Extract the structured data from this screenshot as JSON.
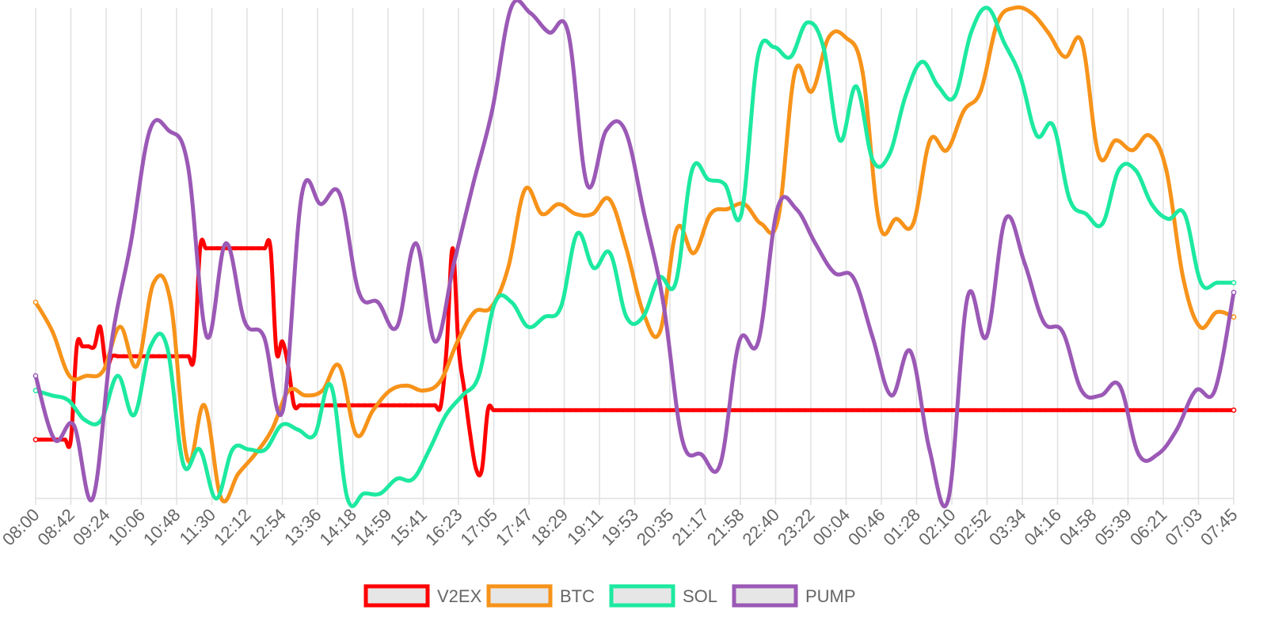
{
  "chart_data": {
    "type": "line",
    "title": "",
    "xlabel": "",
    "ylabel": "",
    "ylim": [
      0,
      100
    ],
    "grid": true,
    "legend_position": "bottom",
    "x_ticks": [
      "08:00",
      "08:42",
      "09:24",
      "10:06",
      "10:48",
      "11:30",
      "12:12",
      "12:54",
      "13:36",
      "14:18",
      "14:59",
      "15:41",
      "16:23",
      "17:05",
      "17:47",
      "18:29",
      "19:11",
      "19:53",
      "20:35",
      "21:17",
      "21:58",
      "22:40",
      "23:22",
      "00:04",
      "00:46",
      "01:28",
      "02:10",
      "02:52",
      "03:34",
      "04:16",
      "04:58",
      "05:39",
      "06:21",
      "07:03",
      "07:45"
    ],
    "series": [
      {
        "name": "V2EX",
        "color": "#ff0000",
        "step": true,
        "values": [
          12,
          12,
          12,
          12,
          12,
          12,
          12,
          31,
          31,
          31,
          31,
          35,
          27,
          29,
          29,
          29,
          29,
          29,
          29,
          29,
          29,
          29,
          29,
          29,
          29,
          29,
          29,
          29,
          51,
          51,
          51,
          51,
          51,
          51,
          51,
          51,
          51,
          51,
          51,
          51,
          51,
          30,
          32,
          27,
          19,
          19,
          19,
          19,
          19,
          19,
          19,
          19,
          19,
          19,
          19,
          19,
          19,
          19,
          19,
          19,
          19,
          19,
          19,
          19,
          19,
          19,
          19,
          19,
          19,
          19,
          31,
          51,
          31,
          22,
          13,
          6,
          6,
          18,
          18,
          18,
          18,
          18,
          18,
          18,
          18,
          18,
          18,
          18,
          18,
          18,
          18,
          18,
          18,
          18,
          18,
          18,
          18,
          18,
          18,
          18,
          18,
          18,
          18,
          18,
          18,
          18,
          18,
          18,
          18,
          18,
          18,
          18,
          18,
          18,
          18,
          18,
          18,
          18,
          18,
          18,
          18,
          18,
          18,
          18,
          18,
          18,
          18,
          18,
          18,
          18,
          18,
          18,
          18,
          18,
          18,
          18,
          18,
          18,
          18,
          18,
          18,
          18,
          18,
          18,
          18,
          18,
          18,
          18,
          18,
          18,
          18,
          18,
          18,
          18,
          18,
          18,
          18,
          18,
          18,
          18,
          18,
          18,
          18,
          18,
          18,
          18,
          18,
          18,
          18,
          18,
          18,
          18,
          18,
          18,
          18,
          18,
          18,
          18,
          18,
          18,
          18,
          18,
          18,
          18,
          18,
          18,
          18,
          18,
          18,
          18,
          18,
          18,
          18,
          18,
          18,
          18,
          18,
          18,
          18,
          18,
          18,
          18,
          18,
          18,
          18
        ]
      },
      {
        "name": "BTC",
        "color": "#f7931a",
        "values": [
          40,
          34,
          25,
          25,
          26,
          35,
          27,
          44,
          40,
          8,
          19,
          0,
          5,
          9,
          14,
          22,
          21,
          22,
          27,
          13,
          18,
          22,
          23,
          22,
          24,
          32,
          38,
          39,
          47,
          63,
          58,
          60,
          58,
          58,
          61,
          51,
          38,
          34,
          55,
          50,
          58,
          59,
          60,
          56,
          57,
          87,
          83,
          94,
          94,
          87,
          56,
          57,
          56,
          73,
          71,
          79,
          83,
          97,
          100,
          99,
          95,
          90,
          93,
          70,
          73,
          71,
          74,
          67,
          45,
          35,
          38,
          37
        ]
      },
      {
        "name": "SOL",
        "color": "#1de9a0",
        "values": [
          22,
          21,
          20,
          16,
          16,
          25,
          17,
          31,
          31,
          7,
          10,
          0,
          10,
          10,
          10,
          15,
          14,
          13,
          23,
          0,
          1,
          1,
          4,
          4,
          10,
          17,
          21,
          25,
          40,
          40,
          35,
          37,
          39,
          54,
          47,
          50,
          37,
          37,
          45,
          44,
          67,
          65,
          64,
          58,
          90,
          92,
          90,
          97,
          92,
          73,
          84,
          69,
          70,
          82,
          89,
          84,
          82,
          95,
          100,
          93,
          86,
          74,
          76,
          61,
          58,
          56,
          67,
          67,
          60,
          57,
          58,
          44,
          44,
          44
        ]
      },
      {
        "name": "PUMP",
        "color": "#9b59b6",
        "values": [
          25,
          12,
          15,
          0,
          32,
          52,
          75,
          75,
          68,
          33,
          52,
          36,
          33,
          18,
          62,
          60,
          62,
          42,
          40,
          35,
          52,
          32,
          48,
          64,
          79,
          100,
          99,
          95,
          95,
          64,
          75,
          75,
          58,
          40,
          12,
          9,
          7,
          32,
          32,
          59,
          59,
          52,
          46,
          45,
          33,
          21,
          30,
          10,
          0,
          41,
          33,
          57,
          48,
          36,
          34,
          22,
          21,
          23,
          9,
          9,
          14,
          22,
          22,
          42
        ]
      }
    ]
  },
  "legend": [
    {
      "label": "V2EX",
      "color": "#ff0000"
    },
    {
      "label": "BTC",
      "color": "#f7931a"
    },
    {
      "label": "SOL",
      "color": "#1de9a0"
    },
    {
      "label": "PUMP",
      "color": "#9b59b6"
    }
  ]
}
